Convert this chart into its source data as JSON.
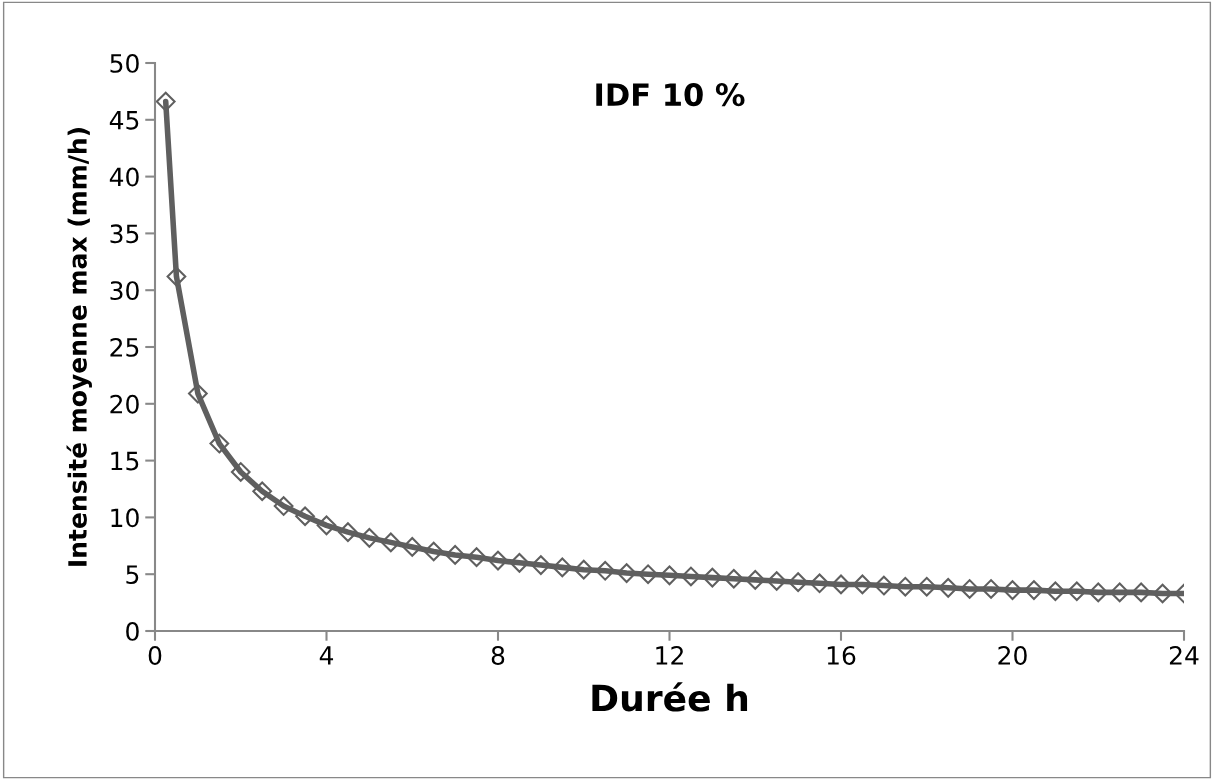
{
  "chart_data": {
    "type": "line",
    "title": "IDF 10 %",
    "xlabel": "Durée h",
    "ylabel": "Intensité moyenne max (mm/h)",
    "x": [
      0.25,
      0.5,
      1,
      1.5,
      2,
      2.5,
      3,
      3.5,
      4,
      4.5,
      5,
      5.5,
      6,
      6.5,
      7,
      7.5,
      8,
      8.5,
      9,
      9.5,
      10,
      10.5,
      11,
      11.5,
      12,
      12.5,
      13,
      13.5,
      14,
      14.5,
      15,
      15.5,
      16,
      16.5,
      17,
      17.5,
      18,
      18.5,
      19,
      19.5,
      20,
      20.5,
      21,
      21.5,
      22,
      22.5,
      23,
      23.5,
      24
    ],
    "series": [
      {
        "color": "#5f5f5f",
        "values": [
          46.6,
          31.2,
          20.9,
          16.5,
          14.0,
          12.3,
          11.0,
          10.1,
          9.3,
          8.7,
          8.2,
          7.8,
          7.4,
          7.0,
          6.7,
          6.5,
          6.2,
          6.0,
          5.8,
          5.6,
          5.4,
          5.3,
          5.1,
          5.0,
          4.9,
          4.8,
          4.7,
          4.6,
          4.5,
          4.4,
          4.3,
          4.2,
          4.1,
          4.1,
          4.0,
          3.9,
          3.9,
          3.8,
          3.7,
          3.7,
          3.6,
          3.6,
          3.5,
          3.5,
          3.4,
          3.4,
          3.4,
          3.3,
          3.3
        ]
      }
    ],
    "xlim": [
      0,
      24
    ],
    "xticks": [
      0,
      4,
      8,
      12,
      16,
      20,
      24
    ],
    "ylim": [
      0,
      50
    ],
    "yticks": [
      0,
      5,
      10,
      15,
      20,
      25,
      30,
      35,
      40,
      45,
      50
    ],
    "grid": false,
    "legend": false,
    "marker": "diamond",
    "line_style": "solid"
  }
}
